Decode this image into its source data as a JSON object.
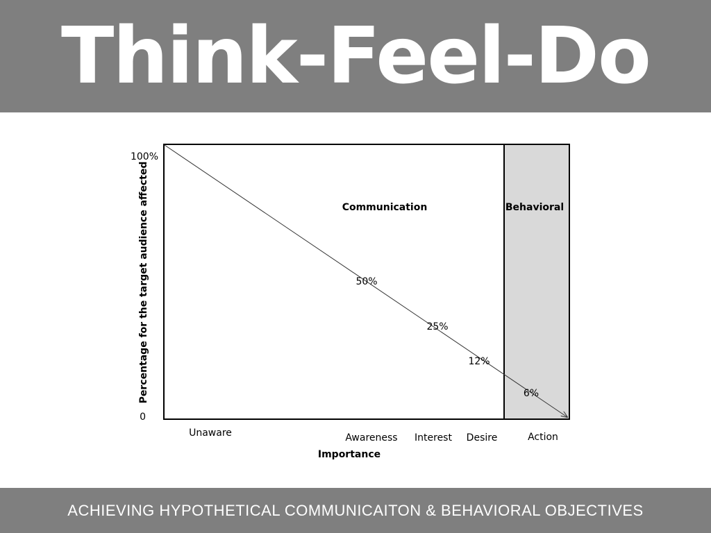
{
  "header": {
    "title": "Think-Feel-Do"
  },
  "diagram": {
    "y_axis_label": "Percentage for the target audience affected",
    "y_top": "100%",
    "y_bottom": "0",
    "x_axis_label": "Importance",
    "regions": [
      "Communication",
      "Behavioral"
    ],
    "x_labels": [
      "Unaware",
      "Awareness",
      "Interest",
      "Desire",
      "Action"
    ],
    "point_labels": [
      "50%",
      "25%",
      "12%",
      "6%"
    ]
  },
  "footer": {
    "text": "ACHIEVING HYPOTHETICAL COMMUNICAITON & BEHAVIORAL OBJECTIVES"
  }
}
